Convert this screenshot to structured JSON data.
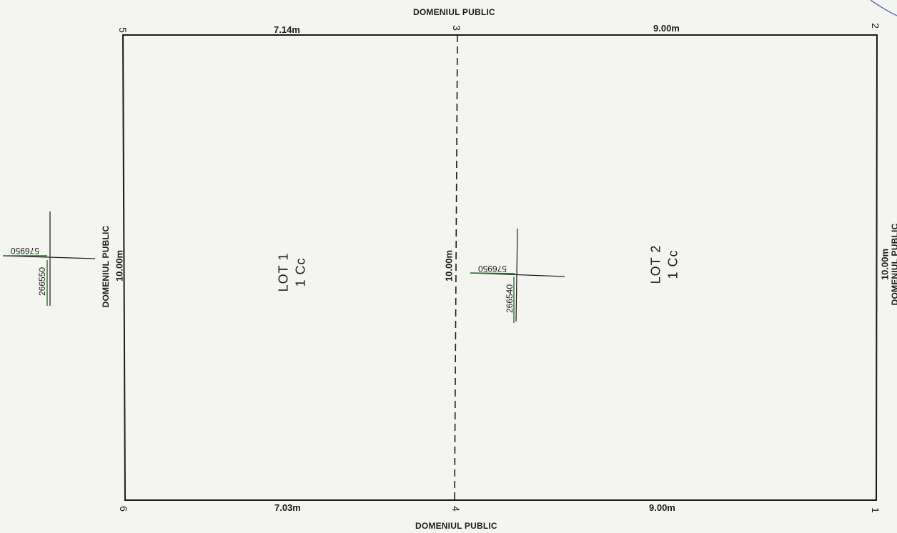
{
  "boundary_labels": {
    "top": "DOMENIUL PUBLIC",
    "bottom": "DOMENIUL PUBLIC",
    "left": "DOMENIUL PUBLIC",
    "right": "DOMENIUL PUBLIC"
  },
  "dimensions": {
    "top_left": "7.14m",
    "top_right": "9.00m",
    "bottom_left": "7.03m",
    "bottom_right": "9.00m",
    "left": "10.00m",
    "middle": "10.00m",
    "right": "10.00m"
  },
  "vertices": {
    "v1": "1",
    "v2": "2",
    "v3": "3",
    "v4": "4",
    "v5": "5",
    "v6": "6"
  },
  "lots": {
    "lot1": {
      "name": "LOT 1",
      "code": "1 Cc"
    },
    "lot2": {
      "name": "LOT 2",
      "code": "1 Cc"
    }
  },
  "grid_marks": {
    "left": {
      "north": "576950",
      "east": "266550"
    },
    "center": {
      "north": "576950",
      "east": "266540"
    }
  },
  "colors": {
    "line": "#1a1a1a",
    "grid_mark": "#2e6b2e",
    "paper": "#f4f4f1",
    "stamp": "#5c6fc0"
  }
}
